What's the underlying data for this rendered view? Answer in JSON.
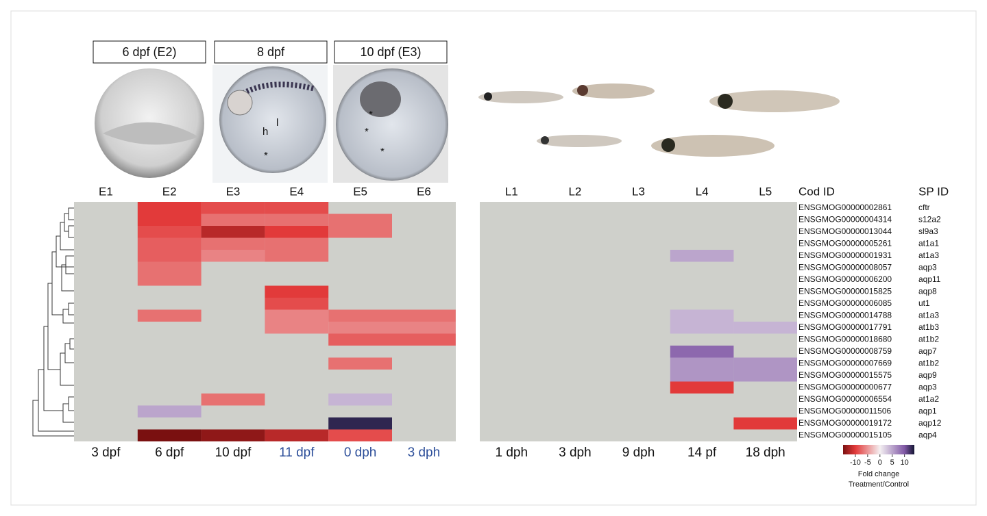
{
  "photo_titles": [
    "6 dpf (E2)",
    "8 dpf",
    "10 dpf (E3)"
  ],
  "photo_annotations": [
    "h",
    "l",
    "*"
  ],
  "chart_data": {
    "type": "heatmap",
    "categories": [
      "E1",
      "E2",
      "E3",
      "E4",
      "E5",
      "E6",
      "L1",
      "L2",
      "L3",
      "L4",
      "L5"
    ],
    "stages": [
      "3 dpf",
      "6 dpf",
      "10 dpf",
      "11 dpf",
      "0 dph",
      "3 dph",
      "1 dph",
      "3 dph",
      "9 dph",
      "14 pf",
      "18 dph"
    ],
    "stage_colors": [
      "#111111",
      "#111111",
      "#111111",
      "#2d4f9a",
      "#2d4f9a",
      "#2d4f9a",
      "#111111",
      "#111111",
      "#111111",
      "#111111",
      "#111111"
    ],
    "row_title": "Cod ID",
    "row_title_2": "SP ID",
    "rows": [
      "ENSGMOG00000002861",
      "ENSGMOG00000004314",
      "ENSGMOG00000013044",
      "ENSGMOG00000005261",
      "ENSGMOG00000001931",
      "ENSGMOG00000008057",
      "ENSGMOG00000006200",
      "ENSGMOG00000015825",
      "ENSGMOG00000006085",
      "ENSGMOG00000014788",
      "ENSGMOG00000017791",
      "ENSGMOG00000018680",
      "ENSGMOG00000008759",
      "ENSGMOG00000007669",
      "ENSGMOG00000015575",
      "ENSGMOG00000000677",
      "ENSGMOG00000006554",
      "ENSGMOG00000011506",
      "ENSGMOG00000019172",
      "ENSGMOG00000015105"
    ],
    "rows_2": [
      "cftr",
      "s12a2",
      "sl9a3",
      "at1a1",
      "at1a3",
      "aqp3",
      "aqp11",
      "aqp8",
      "ut1",
      "at1a3",
      "at1b3",
      "at1b2",
      "aqp7",
      "at1b2",
      "aqp9",
      "aqp3",
      "at1a2",
      "aqp1",
      "aqp12",
      "aqp4"
    ],
    "values": [
      [
        null,
        -10,
        -9,
        -9,
        null,
        null,
        null,
        null,
        null,
        null,
        null
      ],
      [
        null,
        -10,
        -7,
        -7,
        -7,
        null,
        null,
        null,
        null,
        null,
        null
      ],
      [
        null,
        -9,
        -12,
        -10,
        -7,
        null,
        null,
        null,
        null,
        null,
        null
      ],
      [
        null,
        -8,
        -7,
        -7,
        null,
        null,
        null,
        null,
        null,
        null,
        null
      ],
      [
        null,
        -8,
        -6,
        -7,
        null,
        null,
        null,
        null,
        null,
        5,
        null
      ],
      [
        null,
        -7,
        null,
        null,
        null,
        null,
        null,
        null,
        null,
        null,
        null
      ],
      [
        null,
        -7,
        null,
        null,
        null,
        null,
        null,
        null,
        null,
        null,
        null
      ],
      [
        null,
        null,
        null,
        -10,
        null,
        null,
        null,
        null,
        null,
        null,
        null
      ],
      [
        null,
        null,
        null,
        -9,
        null,
        null,
        null,
        null,
        null,
        null,
        null
      ],
      [
        null,
        -7,
        null,
        -6,
        -7,
        -7,
        null,
        null,
        null,
        4,
        null
      ],
      [
        null,
        null,
        null,
        -6,
        -6,
        -6,
        null,
        null,
        null,
        4,
        4
      ],
      [
        null,
        null,
        null,
        null,
        -8,
        -8,
        null,
        null,
        null,
        null,
        null
      ],
      [
        null,
        null,
        null,
        null,
        null,
        null,
        null,
        null,
        null,
        9,
        null
      ],
      [
        null,
        null,
        null,
        null,
        -7,
        null,
        null,
        null,
        null,
        6,
        6
      ],
      [
        null,
        null,
        null,
        null,
        null,
        null,
        null,
        null,
        null,
        6,
        6
      ],
      [
        null,
        null,
        null,
        null,
        null,
        null,
        null,
        null,
        null,
        -10,
        null
      ],
      [
        null,
        null,
        -7,
        null,
        4,
        null,
        null,
        null,
        null,
        null,
        null
      ],
      [
        null,
        5,
        null,
        null,
        null,
        null,
        null,
        null,
        null,
        null,
        null
      ],
      [
        null,
        null,
        null,
        null,
        13,
        null,
        null,
        null,
        null,
        null,
        -10
      ],
      [
        null,
        -15,
        -14,
        -12,
        -9,
        null,
        null,
        null,
        null,
        null,
        null
      ]
    ],
    "empty_color": "#cfd0cb",
    "colorbar": {
      "lim": [
        -15,
        14
      ],
      "ticks": [
        -10,
        -5,
        0,
        5,
        10
      ],
      "stops": [
        {
          "value": -15,
          "color": "#7a1010"
        },
        {
          "value": -10,
          "color": "#e23a3a"
        },
        {
          "value": 0,
          "color": "#f4f0f2"
        },
        {
          "value": 10,
          "color": "#8159a6"
        },
        {
          "value": 14,
          "color": "#141533"
        }
      ],
      "label": "Fold change",
      "label_2": "Treatment/Control"
    }
  }
}
